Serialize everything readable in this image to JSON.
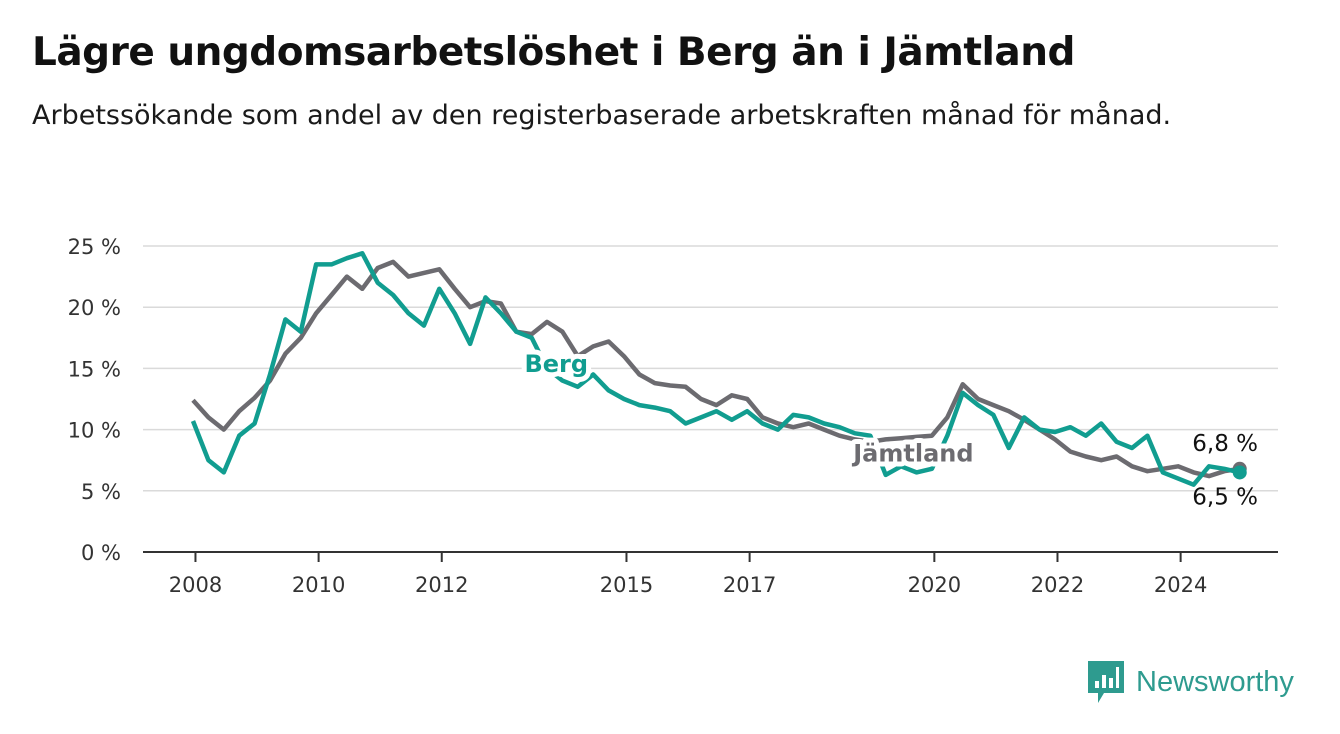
{
  "title": "Lägre ungdomsarbetslöshet i Berg än i Jämtland",
  "subtitle": "Arbetssökande som andel av den registerbaserade arbetskraften månad för månad.",
  "brand": {
    "name": "Newsworthy",
    "icon": "bar-chart-speech-bubble-icon"
  },
  "chart_data": {
    "type": "line",
    "x_ticks": [
      "2008",
      "2010",
      "2012",
      "2015",
      "2017",
      "2020",
      "2022",
      "2024"
    ],
    "y_ticks": [
      "0 %",
      "5 %",
      "10 %",
      "15 %",
      "20 %",
      "25 %"
    ],
    "ylim": [
      0,
      25
    ],
    "grid": true,
    "series": [
      {
        "name": "Jämtland",
        "color": "#6c6b70",
        "end_label": "6,8 %",
        "points": [
          [
            "2008-01",
            12.4
          ],
          [
            "2008-04",
            11.0
          ],
          [
            "2008-07",
            10.0
          ],
          [
            "2008-10",
            11.5
          ],
          [
            "2009-01",
            12.6
          ],
          [
            "2009-04",
            14.0
          ],
          [
            "2009-07",
            16.2
          ],
          [
            "2009-10",
            17.5
          ],
          [
            "2010-01",
            19.5
          ],
          [
            "2010-04",
            21.0
          ],
          [
            "2010-07",
            22.5
          ],
          [
            "2010-10",
            21.5
          ],
          [
            "2011-01",
            23.2
          ],
          [
            "2011-04",
            23.7
          ],
          [
            "2011-07",
            22.5
          ],
          [
            "2011-10",
            22.8
          ],
          [
            "2012-01",
            23.1
          ],
          [
            "2012-04",
            21.5
          ],
          [
            "2012-07",
            20.0
          ],
          [
            "2012-10",
            20.5
          ],
          [
            "2013-01",
            20.3
          ],
          [
            "2013-04",
            18.0
          ],
          [
            "2013-07",
            17.8
          ],
          [
            "2013-10",
            18.8
          ],
          [
            "2014-01",
            18.0
          ],
          [
            "2014-04",
            16.0
          ],
          [
            "2014-07",
            16.8
          ],
          [
            "2014-10",
            17.2
          ],
          [
            "2015-01",
            16.0
          ],
          [
            "2015-04",
            14.5
          ],
          [
            "2015-07",
            13.8
          ],
          [
            "2015-10",
            13.6
          ],
          [
            "2016-01",
            13.5
          ],
          [
            "2016-04",
            12.5
          ],
          [
            "2016-07",
            12.0
          ],
          [
            "2016-10",
            12.8
          ],
          [
            "2017-01",
            12.5
          ],
          [
            "2017-04",
            11.0
          ],
          [
            "2017-07",
            10.5
          ],
          [
            "2017-10",
            10.2
          ],
          [
            "2018-01",
            10.5
          ],
          [
            "2018-04",
            10.0
          ],
          [
            "2018-07",
            9.5
          ],
          [
            "2018-10",
            9.2
          ],
          [
            "2019-01",
            9.0
          ],
          [
            "2019-04",
            9.2
          ],
          [
            "2019-07",
            9.3
          ],
          [
            "2019-10",
            9.4
          ],
          [
            "2020-01",
            9.5
          ],
          [
            "2020-04",
            11.0
          ],
          [
            "2020-07",
            13.7
          ],
          [
            "2020-10",
            12.5
          ],
          [
            "2021-01",
            12.0
          ],
          [
            "2021-04",
            11.5
          ],
          [
            "2021-07",
            10.8
          ],
          [
            "2021-10",
            10.0
          ],
          [
            "2022-01",
            9.2
          ],
          [
            "2022-04",
            8.2
          ],
          [
            "2022-07",
            7.8
          ],
          [
            "2022-10",
            7.5
          ],
          [
            "2023-01",
            7.8
          ],
          [
            "2023-04",
            7.0
          ],
          [
            "2023-07",
            6.6
          ],
          [
            "2023-10",
            6.8
          ],
          [
            "2024-01",
            7.0
          ],
          [
            "2024-04",
            6.5
          ],
          [
            "2024-07",
            6.2
          ],
          [
            "2024-10",
            6.6
          ],
          [
            "2025-01",
            6.8
          ]
        ]
      },
      {
        "name": "Berg",
        "color": "#119d90",
        "end_label": "6,5 %",
        "points": [
          [
            "2008-01",
            10.7
          ],
          [
            "2008-04",
            7.5
          ],
          [
            "2008-07",
            6.5
          ],
          [
            "2008-10",
            9.5
          ],
          [
            "2009-01",
            10.5
          ],
          [
            "2009-04",
            14.5
          ],
          [
            "2009-07",
            19.0
          ],
          [
            "2009-10",
            18.0
          ],
          [
            "2010-01",
            23.5
          ],
          [
            "2010-04",
            23.5
          ],
          [
            "2010-07",
            24.0
          ],
          [
            "2010-10",
            24.4
          ],
          [
            "2011-01",
            22.0
          ],
          [
            "2011-04",
            21.0
          ],
          [
            "2011-07",
            19.5
          ],
          [
            "2011-10",
            18.5
          ],
          [
            "2012-01",
            21.5
          ],
          [
            "2012-04",
            19.5
          ],
          [
            "2012-07",
            17.0
          ],
          [
            "2012-10",
            20.8
          ],
          [
            "2013-01",
            19.5
          ],
          [
            "2013-04",
            18.0
          ],
          [
            "2013-07",
            17.5
          ],
          [
            "2013-10",
            15.0
          ],
          [
            "2014-01",
            14.0
          ],
          [
            "2014-04",
            13.5
          ],
          [
            "2014-07",
            14.5
          ],
          [
            "2014-10",
            13.2
          ],
          [
            "2015-01",
            12.5
          ],
          [
            "2015-04",
            12.0
          ],
          [
            "2015-07",
            11.8
          ],
          [
            "2015-10",
            11.5
          ],
          [
            "2016-01",
            10.5
          ],
          [
            "2016-04",
            11.0
          ],
          [
            "2016-07",
            11.5
          ],
          [
            "2016-10",
            10.8
          ],
          [
            "2017-01",
            11.5
          ],
          [
            "2017-04",
            10.5
          ],
          [
            "2017-07",
            10.0
          ],
          [
            "2017-10",
            11.2
          ],
          [
            "2018-01",
            11.0
          ],
          [
            "2018-04",
            10.5
          ],
          [
            "2018-07",
            10.2
          ],
          [
            "2018-10",
            9.7
          ],
          [
            "2019-01",
            9.5
          ],
          [
            "2019-04",
            6.3
          ],
          [
            "2019-07",
            7.0
          ],
          [
            "2019-10",
            6.5
          ],
          [
            "2020-01",
            6.8
          ],
          [
            "2020-04",
            9.5
          ],
          [
            "2020-07",
            13.0
          ],
          [
            "2020-10",
            12.0
          ],
          [
            "2021-01",
            11.2
          ],
          [
            "2021-04",
            8.5
          ],
          [
            "2021-07",
            11.0
          ],
          [
            "2021-10",
            10.0
          ],
          [
            "2022-01",
            9.8
          ],
          [
            "2022-04",
            10.2
          ],
          [
            "2022-07",
            9.5
          ],
          [
            "2022-10",
            10.5
          ],
          [
            "2023-01",
            9.0
          ],
          [
            "2023-04",
            8.5
          ],
          [
            "2023-07",
            9.5
          ],
          [
            "2023-10",
            6.5
          ],
          [
            "2024-01",
            6.0
          ],
          [
            "2024-04",
            5.5
          ],
          [
            "2024-07",
            7.0
          ],
          [
            "2024-10",
            6.8
          ],
          [
            "2025-01",
            6.5
          ]
        ]
      }
    ]
  }
}
